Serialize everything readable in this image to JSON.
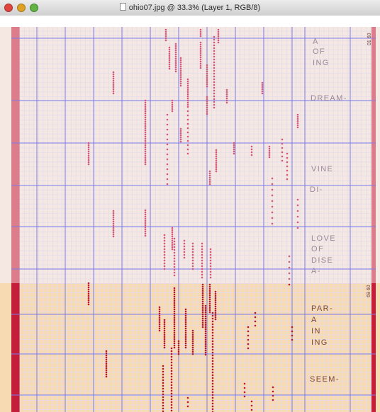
{
  "window": {
    "title": "ohio07.jpg @ 33.3% (Layer 1, RGB/8)"
  },
  "roll": {
    "upper_words": [
      "A",
      "OF",
      "ING",
      "DREAM-",
      "VINE",
      "DI-",
      "LOVE",
      "OF",
      "DISE",
      "A-"
    ],
    "lower_words": [
      "PAR-",
      "A",
      "IN",
      "ING",
      "SEEM-"
    ],
    "side_number_top": "01 60",
    "side_number_lower": "69 60"
  },
  "colors": {
    "upper_paper": "#f5e8e2",
    "lower_paper": "#f7d9b2",
    "upper_margin": "#db7d8a",
    "lower_margin": "#c41e3a",
    "grid_major": "#7c7ce8",
    "grid_minor": "#e4dcea",
    "perforation_upper": "#d4587a",
    "perforation_lower": "#b8182a"
  }
}
